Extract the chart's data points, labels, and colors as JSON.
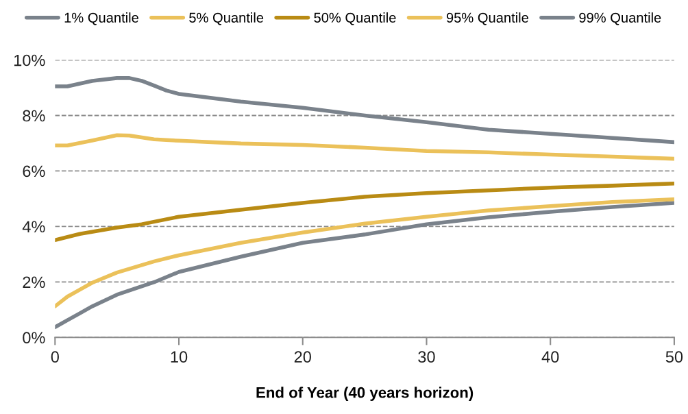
{
  "chart_data": {
    "type": "line",
    "xlabel": "End of Year (40 years horizon)",
    "xlim": [
      0,
      50
    ],
    "xticks": [
      0,
      10,
      20,
      30,
      40,
      50
    ],
    "ylim": [
      0,
      10
    ],
    "yticks": [
      {
        "value": 0,
        "label": "0%"
      },
      {
        "value": 2,
        "label": "2%"
      },
      {
        "value": 4,
        "label": "4%"
      },
      {
        "value": 6,
        "label": "6%"
      },
      {
        "value": 8,
        "label": "8%"
      },
      {
        "value": 10,
        "label": "10%"
      }
    ],
    "grid": "y",
    "legend": "top",
    "marker": "none",
    "line_style": "solid",
    "series": [
      {
        "name": "1% Quantile",
        "color": "#7a828b",
        "x": [
          0,
          1,
          2,
          3,
          5,
          8,
          10,
          15,
          20,
          25,
          30,
          35,
          40,
          45,
          50
        ],
        "values": [
          0.37,
          0.62,
          0.87,
          1.12,
          1.54,
          1.99,
          2.36,
          2.91,
          3.41,
          3.71,
          4.08,
          4.33,
          4.53,
          4.7,
          4.85
        ]
      },
      {
        "name": "5% Quantile",
        "color": "#ebc15a",
        "x": [
          0,
          1,
          2,
          3,
          5,
          8,
          10,
          15,
          20,
          25,
          30,
          35,
          40,
          45,
          50
        ],
        "values": [
          1.12,
          1.47,
          1.72,
          1.97,
          2.34,
          2.74,
          2.96,
          3.41,
          3.78,
          4.1,
          4.35,
          4.58,
          4.73,
          4.88,
          4.98
        ]
      },
      {
        "name": "50% Quantile",
        "color": "#b98b14",
        "x": [
          0,
          2,
          5,
          7,
          10,
          15,
          20,
          25,
          30,
          35,
          40,
          45,
          50
        ],
        "values": [
          3.51,
          3.73,
          3.96,
          4.08,
          4.35,
          4.6,
          4.85,
          5.07,
          5.2,
          5.3,
          5.4,
          5.47,
          5.55
        ]
      },
      {
        "name": "95% Quantile",
        "color": "#ebc15a",
        "x": [
          0,
          1,
          3,
          5,
          6,
          7,
          8,
          10,
          15,
          20,
          25,
          30,
          35,
          40,
          45,
          50
        ],
        "values": [
          6.92,
          6.92,
          7.1,
          7.29,
          7.28,
          7.21,
          7.14,
          7.09,
          6.99,
          6.94,
          6.84,
          6.72,
          6.67,
          6.59,
          6.52,
          6.44
        ]
      },
      {
        "name": "99% Quantile",
        "color": "#7a828b",
        "x": [
          0,
          1,
          3,
          5,
          6,
          7,
          8,
          9,
          10,
          15,
          20,
          25,
          30,
          35,
          40,
          45,
          50
        ],
        "values": [
          9.05,
          9.05,
          9.25,
          9.35,
          9.35,
          9.25,
          9.08,
          8.9,
          8.78,
          8.5,
          8.28,
          8.0,
          7.76,
          7.49,
          7.34,
          7.19,
          7.04
        ]
      }
    ]
  }
}
